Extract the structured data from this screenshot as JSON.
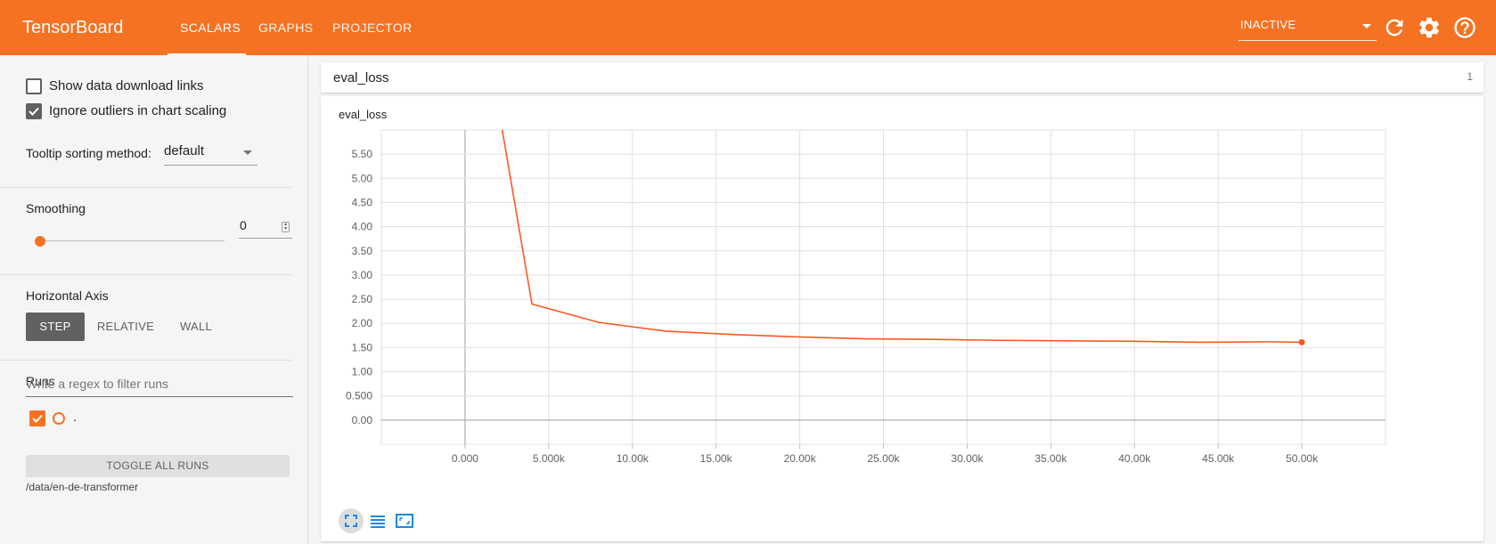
{
  "header": {
    "brand": "TensorBoard",
    "tabs": [
      {
        "label": "SCALARS",
        "active": true
      },
      {
        "label": "GRAPHS",
        "active": false
      },
      {
        "label": "PROJECTOR",
        "active": false
      }
    ],
    "status_value": "INACTIVE",
    "icons": [
      "caret-down-icon",
      "refresh-icon",
      "settings-gear-icon",
      "help-icon"
    ]
  },
  "sidebar": {
    "show_download_links": {
      "label": "Show data download links",
      "checked": false
    },
    "ignore_outliers": {
      "label": "Ignore outliers in chart scaling",
      "checked": true
    },
    "tooltip_sorting": {
      "label": "Tooltip sorting method:",
      "value": "default"
    },
    "smoothing": {
      "label": "Smoothing",
      "value": "0",
      "level": 0
    },
    "horizontal_axis": {
      "label": "Horizontal Axis",
      "options": [
        "STEP",
        "RELATIVE",
        "WALL"
      ],
      "selected": "STEP"
    },
    "runs": {
      "label": "Runs",
      "filter_placeholder": "Write a regex to filter runs",
      "items": [
        {
          "name": ".",
          "checked": true,
          "color": "#f57222"
        }
      ],
      "toggle_all": "TOGGLE ALL RUNS",
      "logdir": "/data/en-de-transformer"
    }
  },
  "main": {
    "category": {
      "title": "eval_loss",
      "count": "1"
    },
    "card": {
      "title": "eval_loss"
    }
  },
  "colors": {
    "header_bg": "#f57222",
    "accent": "#f57222",
    "series": "#ff5722"
  },
  "chart_data": {
    "type": "line",
    "title": "eval_loss",
    "xlabel": "",
    "ylabel": "",
    "xlim": [
      -5000,
      55000
    ],
    "ylim": [
      -0.5,
      6.0
    ],
    "x_ticks": [
      "0.000",
      "5.000k",
      "10.00k",
      "15.00k",
      "20.00k",
      "25.00k",
      "30.00k",
      "35.00k",
      "40.00k",
      "45.00k",
      "50.00k"
    ],
    "x_tick_values": [
      0,
      5000,
      10000,
      15000,
      20000,
      25000,
      30000,
      35000,
      40000,
      45000,
      50000
    ],
    "y_ticks": [
      "0.00",
      "0.500",
      "1.00",
      "1.50",
      "2.00",
      "2.50",
      "3.00",
      "3.50",
      "4.00",
      "4.50",
      "5.00",
      "5.50"
    ],
    "y_tick_values": [
      0,
      0.5,
      1.0,
      1.5,
      2.0,
      2.5,
      3.0,
      3.5,
      4.0,
      4.5,
      5.0,
      5.5
    ],
    "grid": true,
    "series": [
      {
        "name": ".",
        "color": "#ff5722",
        "x": [
          0,
          4000,
          8000,
          12000,
          16000,
          20000,
          24000,
          28000,
          32000,
          36000,
          40000,
          44000,
          48000,
          50000
        ],
        "y": [
          10.5,
          2.4,
          2.02,
          1.84,
          1.77,
          1.72,
          1.68,
          1.67,
          1.65,
          1.64,
          1.63,
          1.61,
          1.62,
          1.61
        ]
      }
    ]
  }
}
